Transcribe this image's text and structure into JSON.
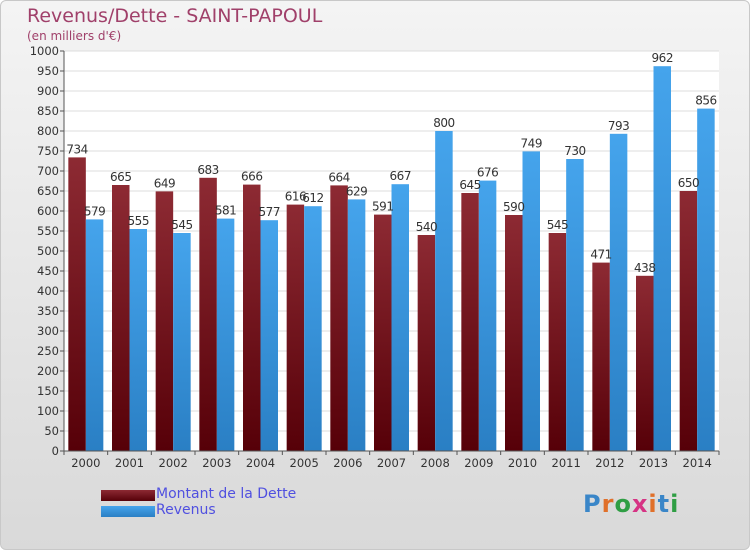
{
  "colors": {
    "dette": "#7a1e26",
    "revenus": "#3d98df",
    "title": "#a0406a",
    "legend_text": "#5050e0"
  },
  "header": {
    "title": "Revenus/Dette - SAINT-PAPOUL",
    "subtitle": "(en milliers d'€)"
  },
  "legend": {
    "dette_label": "Montant de la Dette",
    "revenus_label": "Revenus"
  },
  "logo": {
    "text": "Proxiti"
  },
  "chart_data": {
    "type": "bar",
    "title": "Revenus/Dette - SAINT-PAPOUL",
    "ylabel": "(en milliers d'€)",
    "xlabel": "",
    "ylim": [
      0,
      1000
    ],
    "yticks": [
      0,
      50,
      100,
      150,
      200,
      250,
      300,
      350,
      400,
      450,
      500,
      550,
      600,
      650,
      700,
      750,
      800,
      850,
      900,
      950,
      1000
    ],
    "grid": true,
    "legend_position": "bottom-left",
    "categories": [
      "2000",
      "2001",
      "2002",
      "2003",
      "2004",
      "2005",
      "2006",
      "2007",
      "2008",
      "2009",
      "2010",
      "2011",
      "2012",
      "2013",
      "2014"
    ],
    "series": [
      {
        "name": "Montant de la Dette",
        "values": [
          734,
          665,
          649,
          683,
          666,
          616,
          664,
          591,
          540,
          645,
          590,
          545,
          471,
          438,
          650
        ]
      },
      {
        "name": "Revenus",
        "values": [
          579,
          555,
          545,
          581,
          577,
          612,
          629,
          667,
          800,
          676,
          749,
          730,
          793,
          962,
          856
        ]
      }
    ]
  }
}
